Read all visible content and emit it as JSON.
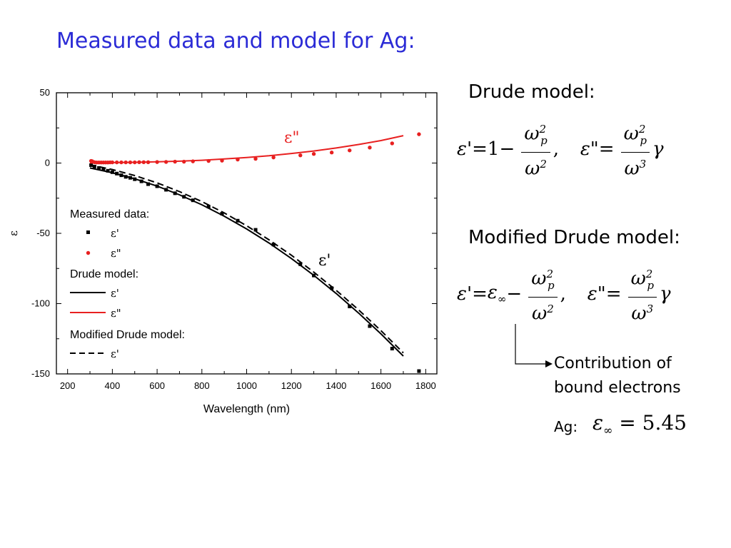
{
  "slide": {
    "title": "Measured data and model for Ag:"
  },
  "chart_data": {
    "type": "line",
    "title": "",
    "xlabel": "Wavelength (nm)",
    "ylabel": "ε",
    "xlim": [
      150,
      1850
    ],
    "ylim": [
      -150,
      50
    ],
    "xticks": [
      200,
      400,
      600,
      800,
      1000,
      1200,
      1400,
      1600,
      1800
    ],
    "yticks": [
      50,
      0,
      -50,
      -100,
      -150
    ],
    "grid": false,
    "legend_position": "left",
    "legend": {
      "measured_header": "Measured data:",
      "measured_eps1": "ε'",
      "measured_eps2": "ε\"",
      "drude_header": "Drude model:",
      "drude_eps1": "ε'",
      "drude_eps2": "ε\"",
      "modified_header": "Modified Drude model:",
      "modified_eps1": "ε'"
    },
    "annotations": {
      "eps2": "ε\"",
      "eps1": "ε'"
    },
    "series": [
      {
        "name": "Measured ε'",
        "kind": "points",
        "marker": "square",
        "color": "#000000",
        "x": [
          305,
          320,
          340,
          360,
          380,
          400,
          420,
          440,
          460,
          480,
          500,
          530,
          560,
          600,
          640,
          680,
          720,
          760,
          830,
          890,
          960,
          1040,
          1120,
          1240,
          1300,
          1380,
          1460,
          1550,
          1650,
          1770
        ],
        "y": [
          -1.5,
          -2.5,
          -3.5,
          -4.5,
          -5.5,
          -6.5,
          -7.5,
          -8.7,
          -9.8,
          -10.5,
          -11.5,
          -13,
          -15,
          -16.5,
          -19,
          -21.5,
          -24,
          -26.5,
          -31,
          -36,
          -41,
          -47.5,
          -58,
          -72,
          -80,
          -89,
          -102,
          -116,
          -132,
          -148
        ]
      },
      {
        "name": "Measured ε\"",
        "kind": "points",
        "marker": "circle",
        "color": "#e82020",
        "x": [
          305,
          310,
          320,
          330,
          340,
          350,
          360,
          370,
          380,
          390,
          400,
          420,
          440,
          460,
          480,
          500,
          520,
          540,
          560,
          600,
          640,
          680,
          720,
          760,
          830,
          890,
          960,
          1040,
          1120,
          1240,
          1300,
          1380,
          1460,
          1550,
          1650,
          1770
        ],
        "y": [
          1.5,
          1.3,
          0.6,
          0.4,
          0.4,
          0.4,
          0.4,
          0.4,
          0.4,
          0.5,
          0.5,
          0.5,
          0.5,
          0.5,
          0.5,
          0.5,
          0.6,
          0.6,
          0.6,
          0.7,
          0.8,
          1.0,
          1.0,
          1.2,
          1.5,
          1.7,
          2.5,
          3.0,
          4.0,
          5.5,
          6.5,
          7.5,
          9.0,
          11.0,
          14.0,
          20.5
        ]
      },
      {
        "name": "Drude ε'",
        "kind": "line",
        "dash": "solid",
        "color": "#000000",
        "x": [
          300,
          400,
          500,
          600,
          700,
          800,
          900,
          1000,
          1100,
          1200,
          1300,
          1400,
          1500,
          1600,
          1700
        ],
        "y": [
          -3.5,
          -6.9,
          -11.2,
          -16.4,
          -22.6,
          -29.7,
          -37.8,
          -46.9,
          -56.9,
          -67.9,
          -79.9,
          -92.8,
          -106.7,
          -121.5,
          -137.3
        ]
      },
      {
        "name": "Drude ε\"",
        "kind": "line",
        "dash": "solid",
        "color": "#e82020",
        "x": [
          300,
          400,
          500,
          600,
          700,
          800,
          900,
          1000,
          1100,
          1200,
          1300,
          1400,
          1500,
          1600,
          1700
        ],
        "y": [
          0.1,
          0.3,
          0.5,
          0.9,
          1.3,
          2.0,
          2.9,
          3.9,
          5.2,
          6.8,
          8.6,
          10.7,
          13.2,
          16.0,
          19.5
        ]
      },
      {
        "name": "Modified Drude ε'",
        "kind": "line",
        "dash": "dashed",
        "color": "#000000",
        "x": [
          300,
          400,
          500,
          600,
          700,
          800,
          900,
          1000,
          1100,
          1200,
          1300,
          1400,
          1500,
          1600,
          1700
        ],
        "y": [
          -1.2,
          -4.6,
          -8.9,
          -14.1,
          -20.3,
          -27.4,
          -35.5,
          -44.6,
          -54.6,
          -65.6,
          -77.6,
          -90.5,
          -104.4,
          -119.2,
          -135.0
        ]
      }
    ]
  },
  "equations": {
    "drude_header": "Drude model:",
    "modified_header": "Modified Drude model:",
    "eps1_lhs": "ε'",
    "eps2_lhs": "ε\"",
    "one": "1",
    "omega": "ω",
    "omega_p_sub": "p",
    "sq": "2",
    "cube": "3",
    "gamma": "γ",
    "eps_inf": "ε",
    "inf_sub": "∞"
  },
  "note": {
    "line1": "Contribution of",
    "line2": "bound electrons"
  },
  "ag": {
    "label": "Ag:",
    "eps": "ε",
    "inf_sub": "∞",
    "value": "= 5.45"
  }
}
